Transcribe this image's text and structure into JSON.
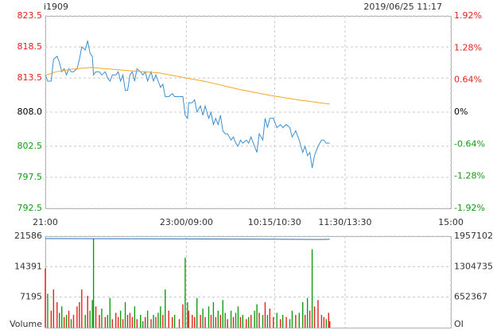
{
  "chart_data": [
    {
      "type": "line",
      "title": "i1909",
      "subtitle": "2019/06/25 11:17",
      "x": [
        0,
        2,
        5,
        7,
        10,
        12,
        14,
        16,
        18,
        20,
        22,
        24,
        27,
        29,
        31,
        34,
        36,
        38,
        40,
        41,
        43,
        46,
        48,
        51,
        53,
        55,
        57,
        60,
        62,
        64,
        66,
        68,
        70,
        72,
        74,
        76,
        78,
        81,
        83,
        85,
        87,
        90,
        92,
        94,
        96,
        98,
        100,
        102,
        105,
        108,
        110,
        114,
        117,
        119,
        121,
        122,
        125,
        127,
        129,
        132,
        134,
        136,
        139,
        141,
        143,
        145,
        147,
        149,
        151,
        153,
        155,
        158,
        160,
        162,
        164,
        166,
        168,
        171,
        173,
        175,
        178,
        180,
        182,
        185,
        187,
        189,
        191,
        194,
        197,
        200,
        202,
        205,
        208,
        210,
        213,
        216,
        219,
        221,
        223,
        225,
        227,
        229,
        232,
        235,
        237,
        239,
        241,
        242
      ],
      "xlim": [
        0,
        345
      ],
      "xticks": [
        {
          "value": 0,
          "label": "21:00"
        },
        {
          "value": 120,
          "label": "23:00/09:00"
        },
        {
          "value": 195,
          "label": "10:15/10:30"
        },
        {
          "value": 255,
          "label": "11:30/13:30"
        },
        {
          "value": 345,
          "label": "15:00"
        }
      ],
      "series": [
        {
          "color": "#3d8fd1",
          "values": [
            814.0,
            813.0,
            813.0,
            816.5,
            817.0,
            816.0,
            814.5,
            815.0,
            814.0,
            815.0,
            814.5,
            814.5,
            815.0,
            816.5,
            818.5,
            818.0,
            819.5,
            817.5,
            817.0,
            814.0,
            814.5,
            814.5,
            814.0,
            814.5,
            813.5,
            813.0,
            814.0,
            814.0,
            814.5,
            813.0,
            814.0,
            811.5,
            811.5,
            814.0,
            814.5,
            813.0,
            815.0,
            814.5,
            814.0,
            814.5,
            813.0,
            814.5,
            813.0,
            814.0,
            813.0,
            812.0,
            812.5,
            810.5,
            810.5,
            811.0,
            810.5,
            810.5,
            810.5,
            807.5,
            807.0,
            809.5,
            809.5,
            810.0,
            808.0,
            809.0,
            807.5,
            809.0,
            807.0,
            808.0,
            806.0,
            807.0,
            806.0,
            807.5,
            805.0,
            804.5,
            804.5,
            803.5,
            804.0,
            803.0,
            802.5,
            803.5,
            803.0,
            803.5,
            803.0,
            804.0,
            802.5,
            801.5,
            804.5,
            803.5,
            807.0,
            805.5,
            807.0,
            807.0,
            805.5,
            806.0,
            805.5,
            806.0,
            805.5,
            804.0,
            805.0,
            803.5,
            801.5,
            802.5,
            801.0,
            801.5,
            799.0,
            801.0,
            802.5,
            803.5,
            803.5,
            803.0,
            803.0,
            803.0
          ]
        },
        {
          "color": "#f5a623",
          "x": [
            0,
            9,
            22,
            39,
            63,
            97,
            117,
            137,
            164,
            191,
            218,
            242
          ],
          "values": [
            813.9,
            814.5,
            814.9,
            815.2,
            814.8,
            814.3,
            813.6,
            812.9,
            811.7,
            810.7,
            809.9,
            809.3
          ]
        }
      ],
      "ylim": [
        792.5,
        823.5
      ],
      "yticks": [
        792.5,
        797.5,
        802.5,
        {
          "value": 808,
          "label": "808.0"
        },
        813.5,
        818.5,
        823.5
      ],
      "y2lim": [
        -1.92,
        1.92
      ],
      "y2ticks": [
        {
          "value": -1.92,
          "label": "-1.92%"
        },
        {
          "value": -1.28,
          "label": "-1.28%"
        },
        {
          "value": -0.64,
          "label": "-0.64%"
        },
        {
          "value": 0,
          "label": "0%"
        },
        {
          "value": 0.64,
          "label": "0.64%"
        },
        {
          "value": 1.28,
          "label": "1.28%"
        },
        {
          "value": 1.92,
          "label": "1.92%"
        }
      ],
      "up_color": "#e5211b",
      "down_color": "#139a13",
      "grid": true
    },
    {
      "type": "bar",
      "ylabel": "Volume",
      "y2label": "OI",
      "values": [
        14000,
        8000,
        4000,
        9000,
        6000,
        3500,
        5000,
        2500,
        3000,
        4000,
        2000,
        3000,
        5000,
        6000,
        9000,
        3000,
        7500,
        4000,
        6500,
        21000,
        5000,
        3000,
        4500,
        2500,
        3000,
        7000,
        2000,
        3500,
        2500,
        4000,
        2000,
        6000,
        3000,
        3500,
        2500,
        5000,
        2000,
        3000,
        1500,
        2500,
        4000,
        2000,
        3000,
        2500,
        3500,
        5000,
        3000,
        9000,
        4000,
        2500,
        3000,
        2000,
        5500,
        16500,
        6000,
        4000,
        3000,
        2500,
        7000,
        3000,
        4500,
        2500,
        5000,
        3000,
        6000,
        2500,
        4000,
        3000,
        6500,
        3500,
        2000,
        4000,
        2500,
        3500,
        5000,
        2500,
        3000,
        2000,
        2500,
        3000,
        4000,
        5500,
        3500,
        3000,
        6000,
        3000,
        4500,
        2500,
        3500,
        2000,
        3000,
        2500,
        2000,
        4000,
        3000,
        3500,
        6000,
        3000,
        7000,
        4000,
        18500,
        5000,
        6500,
        3000,
        2500,
        2000,
        3500,
        1500
      ],
      "ylim": [
        0,
        21586
      ],
      "yticks": [
        7195,
        14391,
        21586
      ],
      "y2lim": [
        0,
        1957102
      ],
      "y2ticks": [
        652367,
        1304735,
        1957102
      ],
      "series": [
        {
          "axis": "y2",
          "color": "#2a6fb5",
          "x": [
            0,
            40,
            117,
            189,
            232,
            242
          ],
          "values": [
            1906000,
            1905000,
            1900000,
            1893000,
            1888000,
            1890000
          ]
        }
      ]
    }
  ]
}
